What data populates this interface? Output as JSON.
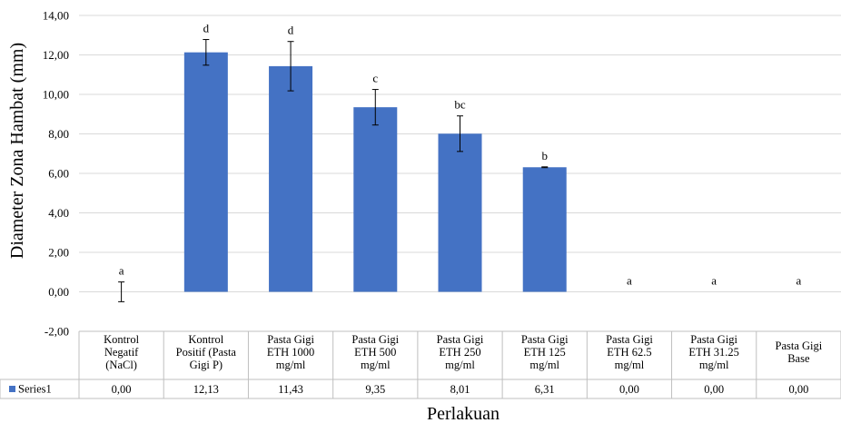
{
  "chart_data": {
    "type": "bar",
    "ylabel": "Diameter Zona Hambat (mm)",
    "xlabel": "Perlakuan",
    "ylim": [
      -2,
      14
    ],
    "yticks": [
      "-2,00",
      "0,00",
      "2,00",
      "4,00",
      "6,00",
      "8,00",
      "10,00",
      "12,00",
      "14,00"
    ],
    "ytick_values": [
      -2,
      0,
      2,
      4,
      6,
      8,
      10,
      12,
      14
    ],
    "grid": true,
    "bar_color": "#4472C4",
    "categories": [
      [
        "Kontrol",
        "Negatif",
        "(NaCl)"
      ],
      [
        "Kontrol",
        "Positif (Pasta",
        "Gigi P)"
      ],
      [
        "Pasta Gigi",
        "ETH 1000",
        "mg/ml"
      ],
      [
        "Pasta Gigi",
        "ETH 500",
        "mg/ml"
      ],
      [
        "Pasta Gigi",
        "ETH 250",
        "mg/ml"
      ],
      [
        "Pasta Gigi",
        "ETH 125",
        "mg/ml"
      ],
      [
        "Pasta Gigi",
        "ETH 62.5",
        "mg/ml"
      ],
      [
        "Pasta Gigi",
        "ETH 31.25",
        "mg/ml"
      ],
      [
        "Pasta Gigi",
        "Base"
      ]
    ],
    "series": [
      {
        "name": "Series1",
        "values": [
          0,
          12.13,
          11.43,
          9.35,
          8.01,
          6.31,
          0,
          0,
          0
        ],
        "error": [
          0.5,
          0.65,
          1.25,
          0.9,
          0.9,
          0.02,
          0,
          0,
          0
        ],
        "table_values": [
          "0,00",
          "12,13",
          "11,43",
          "9,35",
          "8,01",
          "6,31",
          "0,00",
          "0,00",
          "0,00"
        ]
      }
    ],
    "significance_labels": [
      "a",
      "d",
      "d",
      "c",
      "bc",
      "b",
      "a",
      "a",
      "a"
    ],
    "data_table": true
  }
}
